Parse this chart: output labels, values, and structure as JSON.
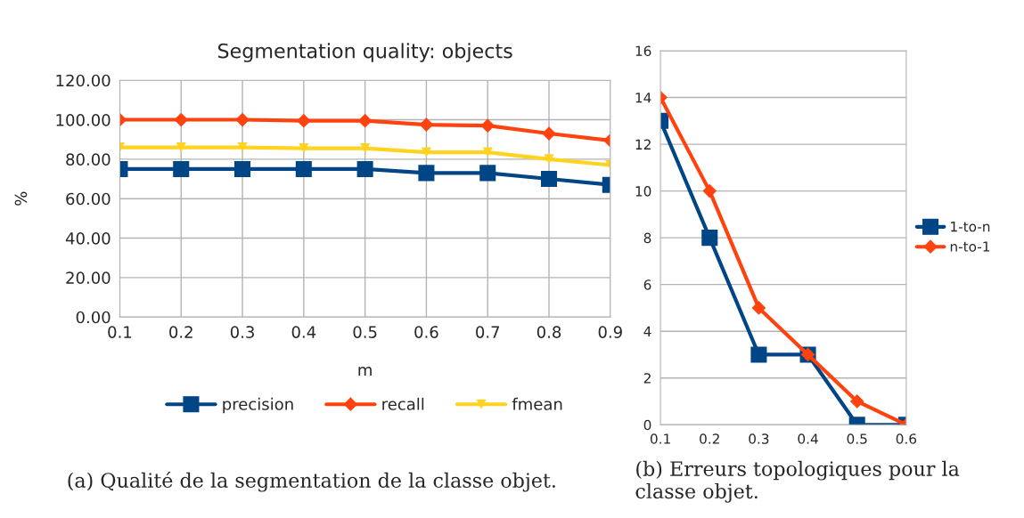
{
  "chart_data": [
    {
      "type": "line",
      "title": "Segmentation quality: objects",
      "xlabel": "m",
      "ylabel": "%",
      "x": [
        0.1,
        0.2,
        0.3,
        0.4,
        0.5,
        0.6,
        0.7,
        0.8,
        0.9
      ],
      "series": [
        {
          "name": "precision",
          "color": "#004586",
          "marker": "square",
          "values": [
            75,
            75,
            75,
            75,
            75,
            73,
            73,
            70,
            67
          ]
        },
        {
          "name": "recall",
          "color": "#ff420e",
          "marker": "diamond",
          "values": [
            100,
            100,
            100,
            99.5,
            99.5,
            97.5,
            97,
            93,
            89.5
          ]
        },
        {
          "name": "fmean",
          "color": "#ffd320",
          "marker": "triangle",
          "values": [
            86,
            86,
            86,
            85.5,
            85.5,
            83.5,
            83.5,
            80,
            77
          ]
        }
      ],
      "xlim": [
        0.1,
        0.9
      ],
      "xticks": [
        0.1,
        0.2,
        0.3,
        0.4,
        0.5,
        0.6,
        0.7,
        0.8,
        0.9
      ],
      "ylim": [
        0,
        120
      ],
      "yticks": [
        {
          "value": 0,
          "label": "0.00"
        },
        {
          "value": 20,
          "label": "20.00"
        },
        {
          "value": 40,
          "label": "40.00"
        },
        {
          "value": 60,
          "label": "60.00"
        },
        {
          "value": 80,
          "label": "80.00"
        },
        {
          "value": 100,
          "label": "100.00"
        },
        {
          "value": 120,
          "label": "120.00"
        }
      ],
      "grid": true,
      "legend": "bottom",
      "annotations": [
        "(a) Qualité de la segmentation de la classe objet."
      ]
    },
    {
      "type": "line",
      "x": [
        0.1,
        0.2,
        0.3,
        0.4,
        0.5,
        0.6
      ],
      "series": [
        {
          "name": "1-to-n",
          "color": "#004586",
          "marker": "square",
          "values": [
            13,
            8,
            3,
            3,
            0,
            0
          ]
        },
        {
          "name": "n-to-1",
          "color": "#ff420e",
          "marker": "diamond",
          "values": [
            14,
            10,
            5,
            3,
            1,
            0
          ]
        }
      ],
      "xlim": [
        0.1,
        0.6
      ],
      "xticks": [
        0.1,
        0.2,
        0.3,
        0.4,
        0.5,
        0.6
      ],
      "ylim": [
        0,
        16
      ],
      "yticks": [
        0,
        2,
        4,
        6,
        8,
        10,
        12,
        14,
        16
      ],
      "grid": "y",
      "legend": "right",
      "annotations": [
        "(b) Erreurs topologiques pour la classe objet."
      ]
    }
  ]
}
